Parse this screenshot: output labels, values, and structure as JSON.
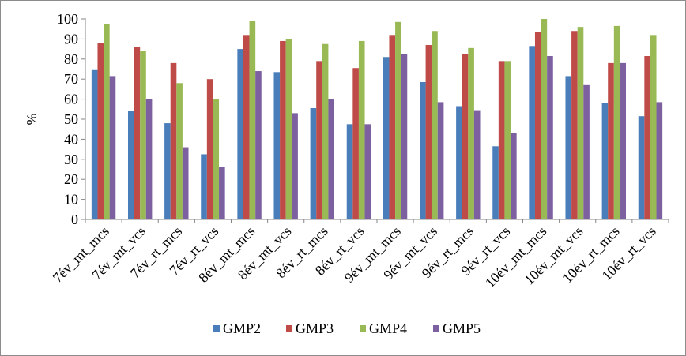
{
  "chart_data": {
    "type": "bar",
    "title": "",
    "xlabel": "",
    "ylabel": "%",
    "ylim": [
      0,
      100
    ],
    "yticks": [
      "0",
      "10",
      "20",
      "30",
      "40",
      "50",
      "60",
      "70",
      "80",
      "90",
      "100"
    ],
    "grid": false,
    "legend_position": "bottom",
    "categories": [
      "7év_mt_mcs",
      "7év_mt_vcs",
      "7év_rt_mcs",
      "7év_rt_vcs",
      "8év_mt_mcs",
      "8év_mt_vcs",
      "8év_rt_mcs",
      "8év_rt_vcs",
      "9év_mt_mcs",
      "9év_mt_vcs",
      "9év_rt_mcs",
      "9év_rt_vcs",
      "10év_mt_mcs",
      "10év_mt_vcs",
      "10év_rt_mcs",
      "10év_rt_vcs"
    ],
    "series": [
      {
        "name": "GMP2",
        "color": "#4a7ebb",
        "values": [
          74.5,
          54,
          48,
          32.5,
          85,
          73.5,
          55.5,
          47.5,
          81,
          68.5,
          56.5,
          36.5,
          86.5,
          71.5,
          58,
          51.5
        ]
      },
      {
        "name": "GMP3",
        "color": "#be4b48",
        "values": [
          88,
          86,
          78,
          70,
          92,
          89,
          79,
          75.5,
          92,
          87,
          82.5,
          79,
          93.5,
          94,
          78,
          81.5
        ]
      },
      {
        "name": "GMP4",
        "color": "#98b954",
        "values": [
          97.5,
          84,
          68,
          60,
          99,
          90,
          87.5,
          89,
          98.5,
          94,
          85.5,
          79,
          100,
          96,
          96.5,
          92
        ]
      },
      {
        "name": "GMP5",
        "color": "#7d60a0",
        "values": [
          71.5,
          60,
          36,
          26,
          74,
          53,
          60,
          47.5,
          82.5,
          58.5,
          54.5,
          43,
          81.5,
          67,
          78,
          58.5
        ]
      }
    ]
  }
}
